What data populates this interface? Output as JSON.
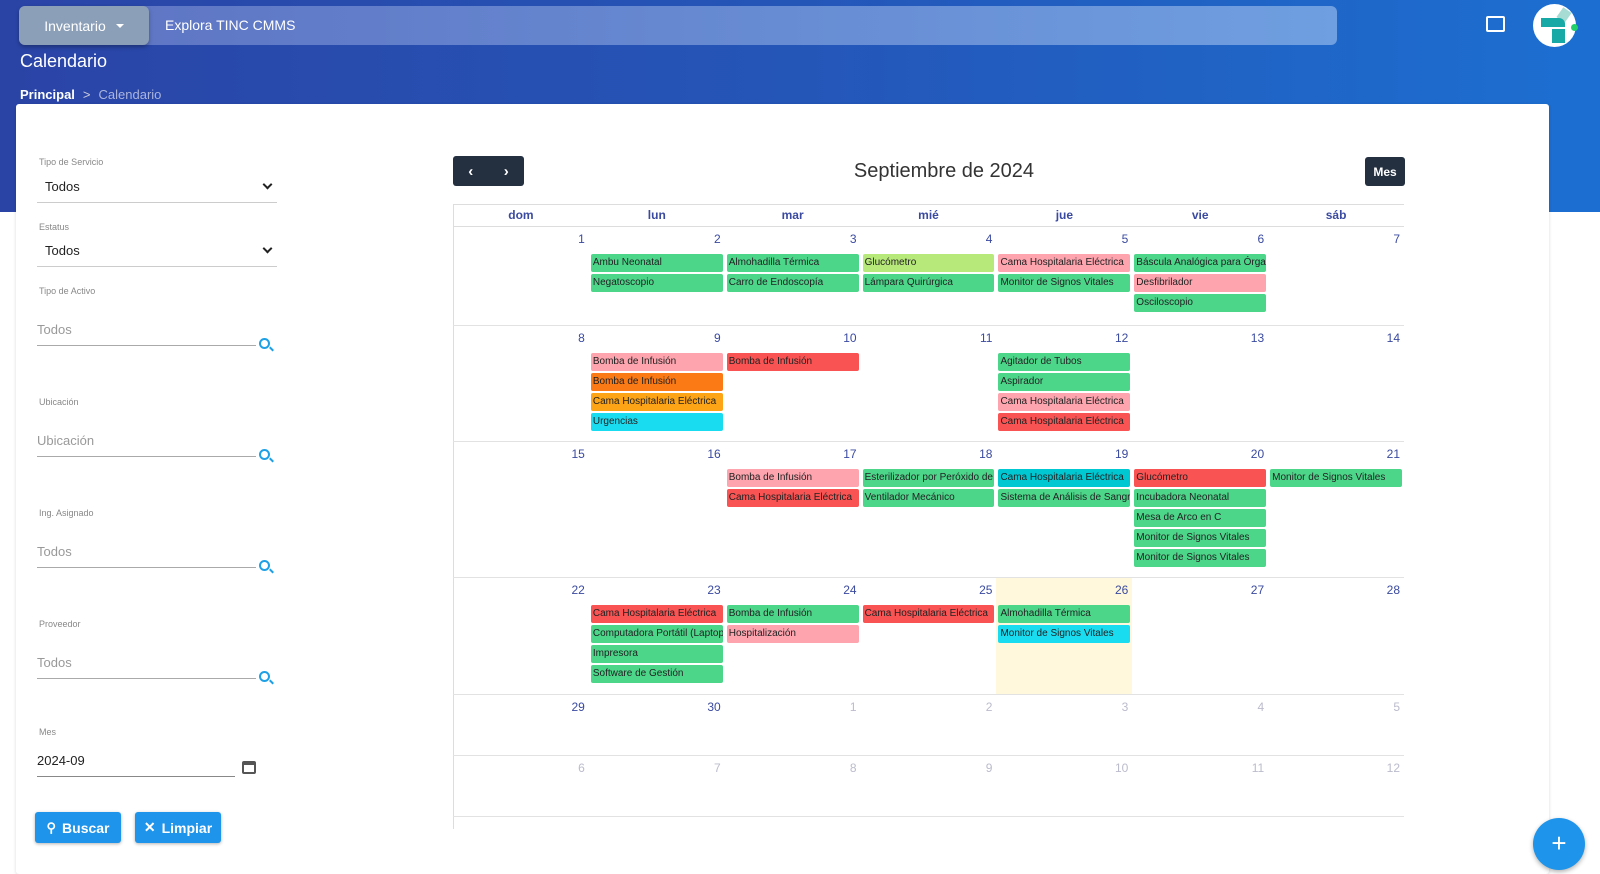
{
  "header": {
    "menu_label": "Inventario",
    "app_name": "Explora TINC CMMS",
    "page_title": "Calendario",
    "breadcrumb": {
      "root": "Principal",
      "separator": ">",
      "current": "Calendario"
    },
    "icons": [
      "fullscreen-icon",
      "avatar-logo"
    ]
  },
  "filters": {
    "tipo_servicio": {
      "label": "Tipo de Servicio",
      "value": "Todos"
    },
    "estatus": {
      "label": "Estatus",
      "value": "Todos"
    },
    "tipo_activo": {
      "label": "Tipo de Activo",
      "placeholder": "Todos"
    },
    "ubicacion": {
      "label": "Ubicación",
      "placeholder": "Ubicación"
    },
    "ing_asignado": {
      "label": "Ing. Asignado",
      "placeholder": "Todos"
    },
    "proveedor": {
      "label": "Proveedor",
      "placeholder": "Todos"
    },
    "mes": {
      "label": "Mes",
      "value": "2024-09"
    },
    "buscar": "Buscar",
    "limpiar": "Limpiar"
  },
  "calendar": {
    "title": "Septiembre de 2024",
    "view_button": "Mes",
    "prev": "‹",
    "next": "›",
    "weekdays": [
      "dom",
      "lun",
      "mar",
      "mié",
      "jue",
      "vie",
      "sáb"
    ],
    "colors": {
      "green": "#4cd68a",
      "pink": "#fda4ae",
      "red": "#f95353",
      "orange": "#fb7a16",
      "amber": "#fca316",
      "cyan": "#1adcf0",
      "teal": "#00c8d3",
      "lime": "#b7e87a"
    },
    "weeks": [
      [
        {
          "n": "1"
        },
        {
          "n": "2",
          "e": [
            [
              "Ambu Neonatal",
              "green"
            ],
            [
              "Negatoscopio",
              "green"
            ]
          ]
        },
        {
          "n": "3",
          "e": [
            [
              "Almohadilla Térmica",
              "green"
            ],
            [
              "Carro de Endoscopía",
              "green"
            ]
          ]
        },
        {
          "n": "4",
          "e": [
            [
              "Glucómetro",
              "lime"
            ],
            [
              "Lámpara Quirúrgica",
              "green"
            ]
          ]
        },
        {
          "n": "5",
          "e": [
            [
              "Cama Hospitalaria Eléctrica",
              "pink"
            ],
            [
              "Monitor de Signos Vitales",
              "green"
            ]
          ]
        },
        {
          "n": "6",
          "e": [
            [
              "Báscula Analógica para Órganos",
              "green"
            ],
            [
              "Desfibrilador",
              "pink"
            ],
            [
              "Osciloscopio",
              "green"
            ]
          ]
        },
        {
          "n": "7"
        }
      ],
      [
        {
          "n": "8"
        },
        {
          "n": "9",
          "e": [
            [
              "Bomba de Infusión",
              "pink"
            ],
            [
              "Bomba de Infusión",
              "orange"
            ],
            [
              "Cama Hospitalaria Eléctrica",
              "amber"
            ],
            [
              "Urgencias",
              "cyan"
            ]
          ]
        },
        {
          "n": "10",
          "e": [
            [
              "Bomba de Infusión",
              "red"
            ]
          ]
        },
        {
          "n": "11"
        },
        {
          "n": "12",
          "e": [
            [
              "Agitador de Tubos",
              "green"
            ],
            [
              "Aspirador",
              "green"
            ],
            [
              "Cama Hospitalaria Eléctrica",
              "pink"
            ],
            [
              "Cama Hospitalaria Eléctrica",
              "red"
            ]
          ]
        },
        {
          "n": "13"
        },
        {
          "n": "14"
        }
      ],
      [
        {
          "n": "15"
        },
        {
          "n": "16"
        },
        {
          "n": "17",
          "e": [
            [
              "Bomba de Infusión",
              "pink"
            ],
            [
              "Cama Hospitalaria Eléctrica",
              "red"
            ]
          ]
        },
        {
          "n": "18",
          "e": [
            [
              "Esterilizador por Peróxido de",
              "green"
            ],
            [
              "Ventilador Mecánico",
              "green"
            ]
          ]
        },
        {
          "n": "19",
          "e": [
            [
              "Cama Hospitalaria Eléctrica",
              "teal"
            ],
            [
              "Sistema de Análisis de Sangre",
              "green"
            ]
          ]
        },
        {
          "n": "20",
          "e": [
            [
              "Glucómetro",
              "red"
            ],
            [
              "Incubadora Neonatal",
              "green"
            ],
            [
              "Mesa de Arco en C",
              "green"
            ],
            [
              "Monitor de Signos Vitales",
              "green"
            ],
            [
              "Monitor de Signos Vitales",
              "green"
            ]
          ]
        },
        {
          "n": "21",
          "e": [
            [
              "Monitor de Signos Vitales",
              "green"
            ]
          ]
        }
      ],
      [
        {
          "n": "22"
        },
        {
          "n": "23",
          "e": [
            [
              "Cama Hospitalaria Eléctrica",
              "red"
            ],
            [
              "Computadora Portátil (Laptop)",
              "green"
            ],
            [
              "Impresora",
              "green"
            ],
            [
              "Software de Gestión",
              "green"
            ]
          ]
        },
        {
          "n": "24",
          "e": [
            [
              "Bomba de Infusión",
              "green"
            ],
            [
              "Hospitalización",
              "pink"
            ]
          ]
        },
        {
          "n": "25",
          "e": [
            [
              "Cama Hospitalaria Eléctrica",
              "red"
            ]
          ]
        },
        {
          "n": "26",
          "today": true,
          "e": [
            [
              "Almohadilla Térmica",
              "green"
            ],
            [
              "Monitor de Signos Vitales",
              "cyan"
            ]
          ]
        },
        {
          "n": "27"
        },
        {
          "n": "28"
        }
      ],
      [
        {
          "n": "29"
        },
        {
          "n": "30"
        },
        {
          "n": "1",
          "m": true
        },
        {
          "n": "2",
          "m": true
        },
        {
          "n": "3",
          "m": true
        },
        {
          "n": "4",
          "m": true
        },
        {
          "n": "5",
          "m": true
        }
      ],
      [
        {
          "n": "6",
          "m": true
        },
        {
          "n": "7",
          "m": true
        },
        {
          "n": "8",
          "m": true
        },
        {
          "n": "9",
          "m": true
        },
        {
          "n": "10",
          "m": true
        },
        {
          "n": "11",
          "m": true
        },
        {
          "n": "12",
          "m": true
        }
      ]
    ]
  },
  "fab_label": "+"
}
